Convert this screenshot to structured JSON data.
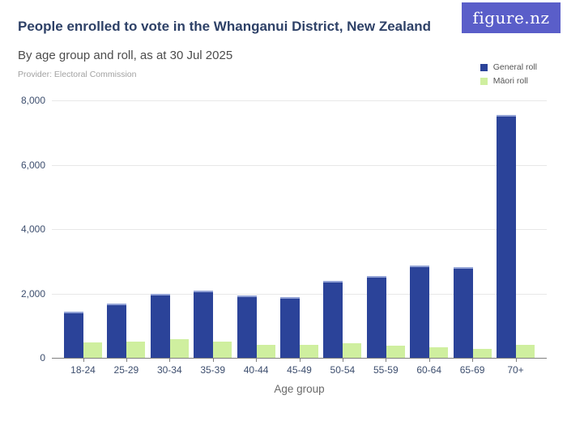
{
  "header": {
    "title": "People enrolled to vote in the Whanganui District, New Zealand",
    "subtitle": "By age group and roll, as at 30 Jul 2025",
    "provider": "Provider: Electoral Commission",
    "logo_text": "figure.nz"
  },
  "colors": {
    "general_roll": "#2b4399",
    "general_roll_cap": "#93a3d6",
    "maori_roll": "#cfef9f",
    "logo_background": "#5a5ec9",
    "title_text": "#2e4167",
    "axis_text": "#3d4e6e",
    "gridline": "#e8e8e8",
    "axis_line": "#7f7f7f"
  },
  "chart_data": {
    "type": "bar",
    "title": "People enrolled to vote in the Whanganui District, New Zealand",
    "subtitle": "By age group and roll, as at 30 Jul 2025",
    "categories": [
      "18-24",
      "25-29",
      "30-34",
      "35-39",
      "40-44",
      "45-49",
      "50-54",
      "55-59",
      "60-64",
      "65-69",
      "70+"
    ],
    "series": [
      {
        "name": "General roll",
        "color": "#2b4399",
        "values": [
          1430,
          1690,
          1980,
          2080,
          1950,
          1890,
          2380,
          2540,
          2870,
          2810,
          7560
        ]
      },
      {
        "name": "Māori roll",
        "color": "#cfef9f",
        "values": [
          470,
          500,
          580,
          500,
          400,
          410,
          460,
          380,
          340,
          270,
          410
        ]
      }
    ],
    "xlabel": "Age group",
    "ylabel": "",
    "ylim": [
      0,
      8000
    ],
    "yticks": [
      0,
      2000,
      4000,
      6000,
      8000
    ],
    "ytick_labels": [
      "0",
      "2,000",
      "4,000",
      "6,000",
      "8,000"
    ],
    "grid": true,
    "legend_position": "top-right"
  }
}
